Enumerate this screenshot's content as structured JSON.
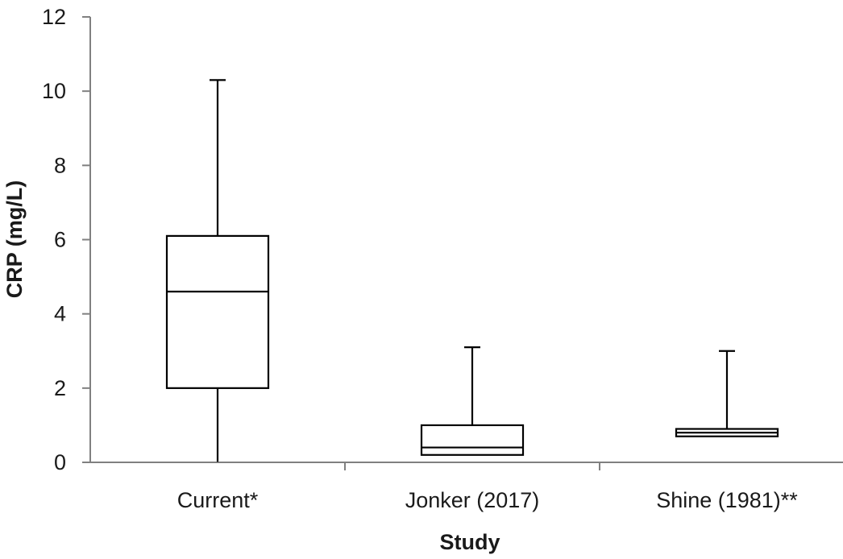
{
  "chart_data": {
    "type": "box",
    "title": "",
    "xlabel": "Study",
    "ylabel": "CRP (mg/L)",
    "ylim": [
      0,
      12
    ],
    "yticks": [
      0,
      2,
      4,
      6,
      8,
      10,
      12
    ],
    "grid": false,
    "legend": "none",
    "categories": [
      "Current*",
      "Jonker (2017)",
      "Shine (1981)**"
    ],
    "boxes": [
      {
        "category": "Current*",
        "min": 0,
        "q1": 2.0,
        "median": 4.6,
        "q3": 6.1,
        "max": 10.3
      },
      {
        "category": "Jonker (2017)",
        "min": 0.2,
        "q1": 0.2,
        "median": 0.4,
        "q3": 1.0,
        "max": 3.1
      },
      {
        "category": "Shine (1981)**",
        "min": 0.7,
        "q1": 0.7,
        "median": 0.8,
        "q3": 0.9,
        "max": 3.0
      }
    ]
  }
}
